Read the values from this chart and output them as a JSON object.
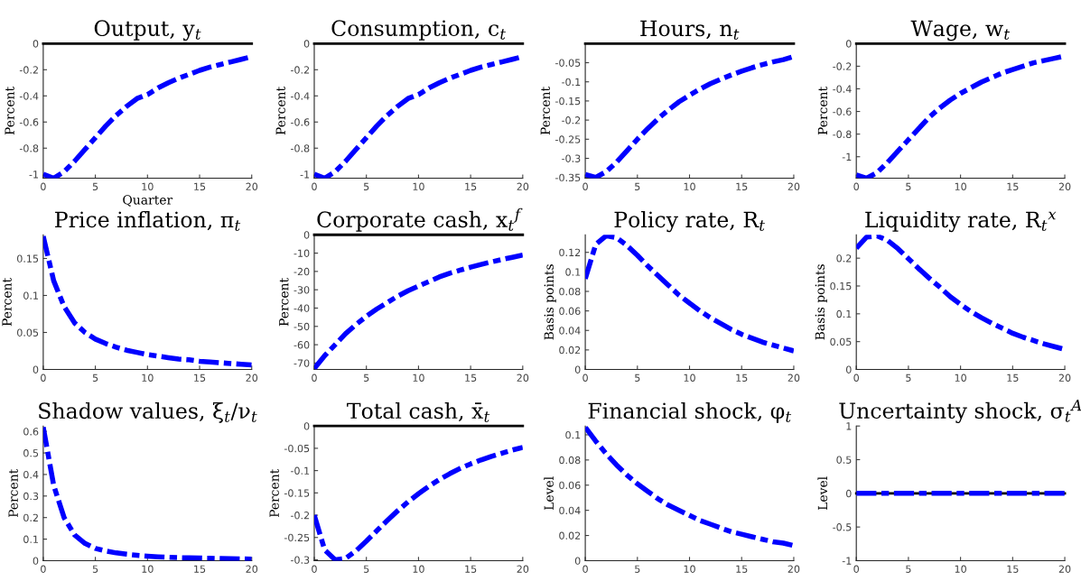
{
  "chart_data": [
    {
      "type": "line",
      "title": "Output, y$_{t}$",
      "ylabel": "Percent",
      "xlabel": "Quarter",
      "line_style": "dashdot",
      "grid": false,
      "x": [
        0,
        1,
        2,
        3,
        4,
        5,
        6,
        7,
        8,
        9,
        10,
        11,
        12,
        13,
        14,
        15,
        16,
        17,
        18,
        19,
        20
      ],
      "xlim": [
        0,
        20
      ],
      "xticks": [
        0,
        5,
        10,
        15,
        20
      ],
      "ylim": [
        -1.03,
        0
      ],
      "yticks": [
        -1,
        -0.8,
        -0.6,
        -0.4,
        -0.2,
        0
      ],
      "ref_lines": [
        {
          "axis": "y",
          "value": 0,
          "color": "#000000"
        }
      ],
      "series": [
        {
          "color": "#0000ff",
          "values": [
            -1.0,
            -1.03,
            -0.98,
            -0.9,
            -0.81,
            -0.72,
            -0.63,
            -0.55,
            -0.48,
            -0.42,
            -0.39,
            -0.34,
            -0.3,
            -0.265,
            -0.235,
            -0.205,
            -0.18,
            -0.16,
            -0.14,
            -0.12,
            -0.1
          ]
        }
      ]
    },
    {
      "type": "line",
      "title": "Consumption, c$_{t}$",
      "ylabel": "Percent",
      "line_style": "dashdot",
      "grid": false,
      "x": [
        0,
        1,
        2,
        3,
        4,
        5,
        6,
        7,
        8,
        9,
        10,
        11,
        12,
        13,
        14,
        15,
        16,
        17,
        18,
        19,
        20
      ],
      "xlim": [
        0,
        20
      ],
      "xticks": [
        0,
        5,
        10,
        15,
        20
      ],
      "ylim": [
        -1.03,
        0
      ],
      "yticks": [
        -1,
        -0.8,
        -0.6,
        -0.4,
        -0.2,
        0
      ],
      "ref_lines": [
        {
          "axis": "y",
          "value": 0,
          "color": "#000000"
        }
      ],
      "series": [
        {
          "color": "#0000ff",
          "values": [
            -1.0,
            -1.03,
            -0.98,
            -0.9,
            -0.81,
            -0.72,
            -0.63,
            -0.55,
            -0.48,
            -0.42,
            -0.39,
            -0.34,
            -0.3,
            -0.265,
            -0.235,
            -0.205,
            -0.18,
            -0.16,
            -0.14,
            -0.12,
            -0.1
          ]
        }
      ]
    },
    {
      "type": "line",
      "title": "Hours, n$_{t}$",
      "ylabel": "Percent",
      "line_style": "dashdot",
      "grid": false,
      "x": [
        0,
        1,
        2,
        3,
        4,
        5,
        6,
        7,
        8,
        9,
        10,
        11,
        12,
        13,
        14,
        15,
        16,
        17,
        18,
        19,
        20
      ],
      "xlim": [
        0,
        20
      ],
      "xticks": [
        0,
        5,
        10,
        15,
        20
      ],
      "ylim": [
        -0.352,
        0
      ],
      "yticks": [
        -0.35,
        -0.3,
        -0.25,
        -0.2,
        -0.15,
        -0.1,
        -0.05
      ],
      "ref_lines": [
        {
          "axis": "y",
          "value": 0,
          "color": "#000000"
        }
      ],
      "series": [
        {
          "color": "#0000ff",
          "values": [
            -0.342,
            -0.35,
            -0.335,
            -0.31,
            -0.28,
            -0.25,
            -0.222,
            -0.196,
            -0.173,
            -0.152,
            -0.135,
            -0.119,
            -0.105,
            -0.093,
            -0.082,
            -0.072,
            -0.063,
            -0.055,
            -0.048,
            -0.042,
            -0.034
          ]
        }
      ]
    },
    {
      "type": "line",
      "title": "Wage, w$_{t}$",
      "ylabel": "Percent",
      "line_style": "dashdot",
      "grid": false,
      "x": [
        0,
        1,
        2,
        3,
        4,
        5,
        6,
        7,
        8,
        9,
        10,
        11,
        12,
        13,
        14,
        15,
        16,
        17,
        18,
        19,
        20
      ],
      "xlim": [
        0,
        20
      ],
      "xticks": [
        0,
        5,
        10,
        15,
        20
      ],
      "ylim": [
        -1.19,
        0
      ],
      "yticks": [
        -1,
        -0.8,
        -0.6,
        -0.4,
        -0.2,
        0
      ],
      "ref_lines": [
        {
          "axis": "y",
          "value": 0,
          "color": "#000000"
        }
      ],
      "series": [
        {
          "color": "#0000ff",
          "values": [
            -1.16,
            -1.19,
            -1.14,
            -1.05,
            -0.95,
            -0.85,
            -0.75,
            -0.65,
            -0.57,
            -0.5,
            -0.44,
            -0.39,
            -0.34,
            -0.3,
            -0.26,
            -0.23,
            -0.2,
            -0.17,
            -0.15,
            -0.13,
            -0.11
          ]
        }
      ]
    },
    {
      "type": "line",
      "title": "Price inflation, π$_{t}$",
      "ylabel": "Percent",
      "line_style": "dashdot",
      "grid": false,
      "x": [
        0,
        1,
        2,
        3,
        4,
        5,
        6,
        7,
        8,
        9,
        10,
        11,
        12,
        13,
        14,
        15,
        16,
        17,
        18,
        19,
        20
      ],
      "xlim": [
        0,
        20
      ],
      "xticks": [
        0,
        5,
        10,
        15,
        20
      ],
      "ylim": [
        0,
        0.182
      ],
      "yticks": [
        0,
        0.05,
        0.1,
        0.15
      ],
      "series": [
        {
          "color": "#0000ff",
          "values": [
            0.18,
            0.12,
            0.085,
            0.063,
            0.05,
            0.041,
            0.035,
            0.03,
            0.026,
            0.023,
            0.02,
            0.018,
            0.016,
            0.014,
            0.013,
            0.011,
            0.01,
            0.009,
            0.008,
            0.007,
            0.006
          ]
        }
      ]
    },
    {
      "type": "line",
      "title": "Corporate cash, x$_{t}$$^{f}$",
      "ylabel": "Percent",
      "line_style": "dashdot",
      "grid": false,
      "x": [
        0,
        1,
        2,
        3,
        4,
        5,
        6,
        7,
        8,
        9,
        10,
        11,
        12,
        13,
        14,
        15,
        16,
        17,
        18,
        19,
        20
      ],
      "xlim": [
        0,
        20
      ],
      "xticks": [
        0,
        5,
        10,
        15,
        20
      ],
      "ylim": [
        -73.5,
        0
      ],
      "yticks": [
        -70,
        -60,
        -50,
        -40,
        -30,
        -20,
        -10,
        0
      ],
      "ref_lines": [
        {
          "axis": "y",
          "value": 0,
          "color": "#000000"
        }
      ],
      "series": [
        {
          "color": "#0000ff",
          "values": [
            -73,
            -66,
            -60,
            -54,
            -49,
            -44.5,
            -40.5,
            -37,
            -33.5,
            -30.5,
            -28,
            -25.5,
            -23,
            -21,
            -19.3,
            -17.7,
            -16.2,
            -14.8,
            -13.5,
            -12.3,
            -11
          ]
        }
      ]
    },
    {
      "type": "line",
      "title": "Policy rate, R$_{t}$",
      "ylabel": "Basis points",
      "line_style": "dashdot",
      "grid": false,
      "x": [
        0,
        1,
        2,
        3,
        4,
        5,
        6,
        7,
        8,
        9,
        10,
        11,
        12,
        13,
        14,
        15,
        16,
        17,
        18,
        19,
        20
      ],
      "xlim": [
        0,
        20
      ],
      "xticks": [
        0,
        5,
        10,
        15,
        20
      ],
      "ylim": [
        0,
        0.138
      ],
      "yticks": [
        0,
        0.02,
        0.04,
        0.06,
        0.08,
        0.1,
        0.12
      ],
      "series": [
        {
          "color": "#0000ff",
          "values": [
            0.093,
            0.128,
            0.137,
            0.135,
            0.127,
            0.117,
            0.106,
            0.096,
            0.086,
            0.076,
            0.068,
            0.06,
            0.053,
            0.047,
            0.041,
            0.036,
            0.032,
            0.028,
            0.025,
            0.022,
            0.019
          ]
        }
      ]
    },
    {
      "type": "line",
      "title": "Liquidity rate, R$_{t}$$^{x}$",
      "ylabel": "Basis points",
      "line_style": "dashdot",
      "grid": false,
      "x": [
        0,
        1,
        2,
        3,
        4,
        5,
        6,
        7,
        8,
        9,
        10,
        11,
        12,
        13,
        14,
        15,
        16,
        17,
        18,
        19,
        20
      ],
      "xlim": [
        0,
        20
      ],
      "xticks": [
        0,
        5,
        10,
        15,
        20
      ],
      "ylim": [
        0,
        0.242
      ],
      "yticks": [
        0,
        0.05,
        0.1,
        0.15,
        0.2
      ],
      "series": [
        {
          "color": "#0000ff",
          "values": [
            0.218,
            0.238,
            0.24,
            0.232,
            0.217,
            0.199,
            0.181,
            0.164,
            0.148,
            0.131,
            0.117,
            0.104,
            0.093,
            0.083,
            0.074,
            0.065,
            0.058,
            0.052,
            0.046,
            0.041,
            0.036
          ]
        }
      ]
    },
    {
      "type": "line",
      "title": "Shadow values, ξ$_{t}$/ν$_{t}$",
      "ylabel": "Percent",
      "line_style": "dashdot",
      "grid": false,
      "x": [
        0,
        1,
        2,
        3,
        4,
        5,
        6,
        7,
        8,
        9,
        10,
        11,
        12,
        13,
        14,
        15,
        16,
        17,
        18,
        19,
        20
      ],
      "xlim": [
        0,
        20
      ],
      "xticks": [
        0,
        5,
        10,
        15,
        20
      ],
      "ylim": [
        0,
        0.625
      ],
      "yticks": [
        0,
        0.1,
        0.2,
        0.3,
        0.4,
        0.5,
        0.6
      ],
      "series": [
        {
          "color": "#0000ff",
          "values": [
            0.62,
            0.35,
            0.2,
            0.12,
            0.08,
            0.057,
            0.045,
            0.036,
            0.03,
            0.025,
            0.021,
            0.018,
            0.016,
            0.014,
            0.013,
            0.012,
            0.011,
            0.01,
            0.009,
            0.008,
            0.007
          ]
        }
      ]
    },
    {
      "type": "line",
      "title": "Total cash, x̄$_{t}$",
      "ylabel": "Percent",
      "line_style": "dashdot",
      "grid": false,
      "x": [
        0,
        1,
        2,
        3,
        4,
        5,
        6,
        7,
        8,
        9,
        10,
        11,
        12,
        13,
        14,
        15,
        16,
        17,
        18,
        19,
        20
      ],
      "xlim": [
        0,
        20
      ],
      "xticks": [
        0,
        5,
        10,
        15,
        20
      ],
      "ylim": [
        -0.302,
        0
      ],
      "yticks": [
        -0.3,
        -0.25,
        -0.2,
        -0.15,
        -0.1,
        -0.05,
        0
      ],
      "ref_lines": [
        {
          "axis": "y",
          "value": 0,
          "color": "#000000"
        }
      ],
      "series": [
        {
          "color": "#0000ff",
          "values": [
            -0.2,
            -0.278,
            -0.3,
            -0.297,
            -0.28,
            -0.258,
            -0.235,
            -0.212,
            -0.19,
            -0.17,
            -0.152,
            -0.135,
            -0.12,
            -0.107,
            -0.095,
            -0.085,
            -0.076,
            -0.068,
            -0.061,
            -0.054,
            -0.048
          ]
        }
      ]
    },
    {
      "type": "line",
      "title": "Financial shock, φ$_{t}$",
      "ylabel": "Level",
      "line_style": "dashdot",
      "grid": false,
      "x": [
        0,
        1,
        2,
        3,
        4,
        5,
        6,
        7,
        8,
        9,
        10,
        11,
        12,
        13,
        14,
        15,
        16,
        17,
        18,
        19,
        20
      ],
      "xlim": [
        0,
        20
      ],
      "xticks": [
        0,
        5,
        10,
        15,
        20
      ],
      "ylim": [
        0,
        0.107
      ],
      "yticks": [
        0,
        0.02,
        0.04,
        0.06,
        0.08,
        0.1
      ],
      "series": [
        {
          "color": "#0000ff",
          "values": [
            0.106,
            0.095,
            0.085,
            0.076,
            0.068,
            0.061,
            0.055,
            0.049,
            0.044,
            0.04,
            0.036,
            0.032,
            0.029,
            0.026,
            0.023,
            0.021,
            0.019,
            0.017,
            0.015,
            0.014,
            0.012
          ]
        }
      ]
    },
    {
      "type": "line",
      "title": "Uncertainty shock, σ$_{t}$$^{A}$",
      "ylabel": "Level",
      "line_style": "dashdot",
      "grid": false,
      "x": [
        0,
        1,
        2,
        3,
        4,
        5,
        6,
        7,
        8,
        9,
        10,
        11,
        12,
        13,
        14,
        15,
        16,
        17,
        18,
        19,
        20
      ],
      "xlim": [
        0,
        20
      ],
      "xticks": [
        0,
        5,
        10,
        15,
        20
      ],
      "ylim": [
        -1,
        1
      ],
      "yticks": [
        -1,
        -0.5,
        0,
        0.5,
        1
      ],
      "ref_lines": [
        {
          "axis": "y",
          "value": 0,
          "color": "#000000"
        }
      ],
      "series": [
        {
          "color": "#0000ff",
          "values": [
            0,
            0,
            0,
            0,
            0,
            0,
            0,
            0,
            0,
            0,
            0,
            0,
            0,
            0,
            0,
            0,
            0,
            0,
            0,
            0,
            0
          ]
        }
      ]
    }
  ]
}
